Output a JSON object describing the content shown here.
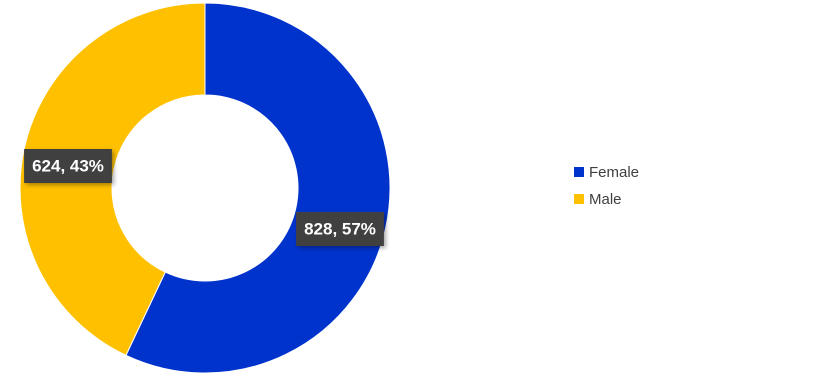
{
  "chart_data": {
    "type": "donut",
    "categories": [
      "Female",
      "Male"
    ],
    "values": [
      828,
      624
    ],
    "value_labels": [
      "828, 57%",
      "624, 43%"
    ],
    "colors": [
      "#0033cc",
      "#ffc000"
    ],
    "legend": "right"
  }
}
